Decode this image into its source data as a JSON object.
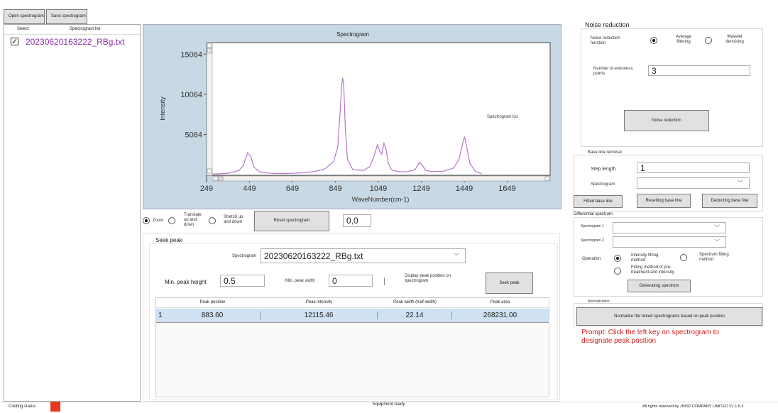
{
  "toolbar": {
    "open_label": "Open spectrogram",
    "save_label": "Save spectrogram"
  },
  "file_list": {
    "header_select": "Select",
    "header_list": "Spectrogram list",
    "items": [
      {
        "checked": true,
        "name": "20230620163222_RBg.txt"
      }
    ]
  },
  "chart_data": {
    "type": "line",
    "title": "Spectrogram",
    "xlabel": "WaveNumber(cm-1)",
    "ylabel": "Intensity",
    "legend": "Spectrogram list",
    "xlim": [
      249,
      1849
    ],
    "ylim": [
      0,
      16500
    ],
    "xticks": [
      249,
      449,
      649,
      849,
      1049,
      1249,
      1449,
      1649
    ],
    "yticks": [
      5064,
      10064,
      15064
    ],
    "series": [
      {
        "color": "#b277c6",
        "x": [
          249,
          300,
          350,
          400,
          420,
          440,
          455,
          470,
          500,
          550,
          600,
          650,
          700,
          750,
          800,
          840,
          860,
          870,
          878,
          883,
          888,
          895,
          905,
          930,
          980,
          1010,
          1030,
          1045,
          1055,
          1065,
          1075,
          1085,
          1095,
          1110,
          1140,
          1180,
          1220,
          1240,
          1255,
          1270,
          1300,
          1350,
          1400,
          1425,
          1440,
          1450,
          1460,
          1475,
          1500,
          1530
        ],
        "y": [
          150,
          180,
          260,
          600,
          1200,
          2800,
          2300,
          1000,
          400,
          250,
          220,
          250,
          320,
          450,
          800,
          1700,
          3500,
          7500,
          11200,
          12115,
          11000,
          6000,
          2000,
          700,
          600,
          1100,
          2500,
          3800,
          3000,
          2600,
          4000,
          3200,
          1500,
          700,
          450,
          420,
          700,
          1600,
          1200,
          600,
          450,
          500,
          900,
          2000,
          3800,
          4800,
          3600,
          1500,
          500,
          200
        ]
      }
    ]
  },
  "view_controls": {
    "zoom": "Zoom",
    "translate": "Translate up and down",
    "stretch": "Stretch up and down",
    "reset": "Reset spectrogram",
    "coords": "0,0"
  },
  "seek_peak": {
    "title": "Seek peak",
    "spectrogram_label": "Spectrogram",
    "spectrogram_value": "20230620163222_RBg.txt",
    "min_height_label": "Min. peak height",
    "min_height_value": "0.5",
    "min_width_label": "Min. peak width",
    "min_width_value": "0",
    "display_label": "Display peak position on spectrogram",
    "button": "Seek peak",
    "columns": [
      "Peak position",
      "Peak intensity",
      "Peak width (half-width)",
      "Peak area"
    ],
    "rows": [
      {
        "index": "1",
        "position": "883.60",
        "intensity": "12115.46",
        "width": "22.14",
        "area": "268231.00"
      }
    ]
  },
  "noise": {
    "title": "Noise reduction",
    "function_label": "Noise reduction function",
    "avg_label": "Average filtering",
    "wavelet_label": "Wavelet denoising",
    "points_label": "Number of evenness points",
    "points_value": "3",
    "button": "Noise reduction"
  },
  "baseline": {
    "title": "Base line removal",
    "step_label": "Step length",
    "step_value": "1",
    "spectrogram_label": "Spectrogram",
    "btn_fit": "Fitted base line",
    "btn_reset": "Resetting base line",
    "btn_deduct": "Deducting base line"
  },
  "differential": {
    "title": "Differential spectrum",
    "spec1_label": "Spectrogram 1",
    "spec2_label": "Spectrogram 2",
    "operation_label": "Operation",
    "opt1": "Intensity fitting method",
    "opt2": "Spectrum fitting method",
    "opt3": "Fitting method of pre-treatment and intensity",
    "button": "Generating spectrum"
  },
  "normalization": {
    "title": "Normalization",
    "button": "Normalize the ticked spectrograms based on peak position",
    "prompt": "Prompt: Click the left key on spectrogram to designate peak position"
  },
  "status": {
    "cooling_label": "Cooling status",
    "cooling_color": "#e8391d",
    "equipment": "Equipment ready",
    "copyright": "All rights reserved by JINSP COMPANY LIMITED V1.1.6.3"
  }
}
